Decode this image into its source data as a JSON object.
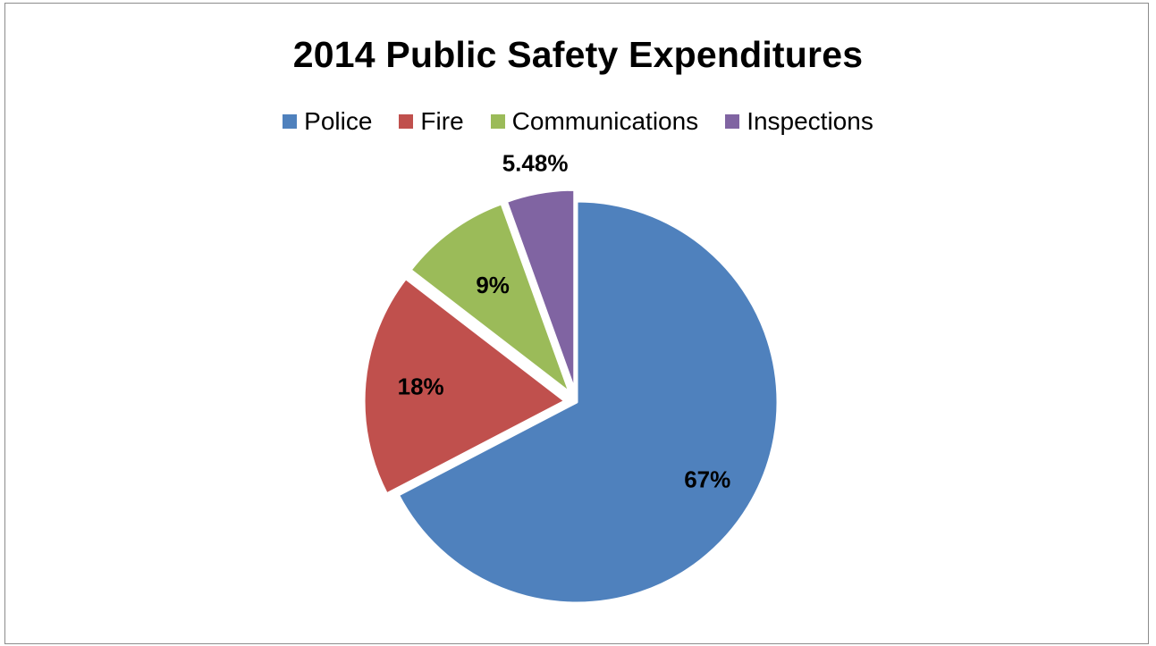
{
  "chart_data": {
    "type": "pie",
    "title": "2014 Public Safety Expenditures",
    "legend_position": "top",
    "slices": [
      {
        "name": "Police",
        "value": 67.0,
        "label": "67%",
        "color": "#4F81BD",
        "exploded": false
      },
      {
        "name": "Fire",
        "value": 18.0,
        "label": "18%",
        "color": "#C0504D",
        "exploded": true
      },
      {
        "name": "Communications",
        "value": 9.0,
        "label": "9%",
        "color": "#9BBB59",
        "exploded": true
      },
      {
        "name": "Inspections",
        "value": 5.48,
        "label": "5.48%",
        "color": "#8064A2",
        "exploded": true
      }
    ]
  }
}
